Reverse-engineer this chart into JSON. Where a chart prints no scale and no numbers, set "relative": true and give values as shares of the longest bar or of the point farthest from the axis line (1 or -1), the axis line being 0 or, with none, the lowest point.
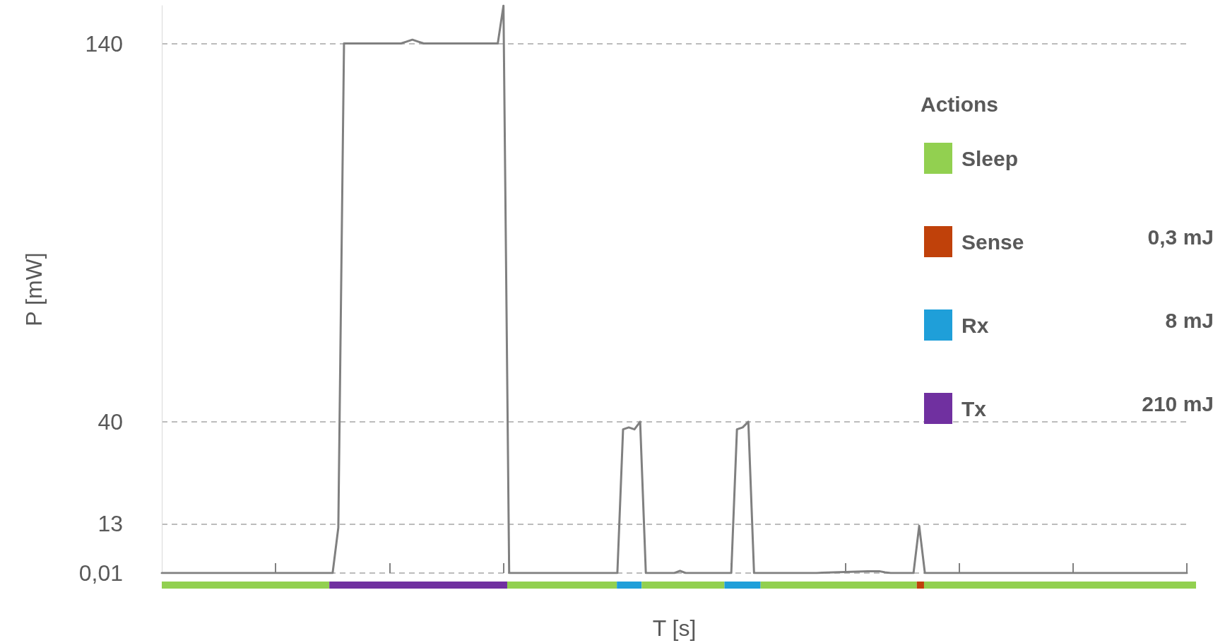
{
  "chart_data": [
    {
      "type": "line",
      "xlabel": "T [s]",
      "ylabel": "P [mW]",
      "categories": [
        null,
        null,
        null,
        null,
        null,
        null,
        null,
        null,
        null,
        null,
        null,
        null,
        null,
        null,
        null,
        null,
        null,
        null,
        null,
        null,
        null,
        null,
        null,
        null,
        null,
        null,
        null,
        null,
        null,
        null,
        null,
        null,
        null,
        null,
        null,
        null,
        null,
        null,
        null,
        null,
        null,
        null,
        null,
        null,
        null,
        null,
        null,
        null,
        null,
        null,
        null,
        null,
        null,
        null,
        null,
        null,
        null,
        null,
        null,
        null,
        null,
        null,
        null,
        null,
        null,
        null,
        null,
        null,
        null,
        null,
        null,
        null,
        null,
        null,
        null,
        null,
        null,
        null,
        null,
        null,
        null,
        null,
        null,
        null,
        null,
        null,
        null,
        null,
        null,
        null,
        null,
        null,
        null,
        null,
        null,
        null,
        null,
        null,
        null,
        null,
        null,
        null,
        null,
        null,
        null,
        null,
        null,
        null,
        null,
        null,
        null,
        null,
        null,
        null,
        null,
        null,
        null,
        null,
        null,
        null,
        null,
        null,
        null,
        null,
        null,
        null,
        null,
        null,
        null,
        null,
        null,
        null,
        null,
        null,
        null,
        null,
        null,
        null,
        null,
        null,
        null,
        null,
        null,
        null,
        null,
        null,
        null,
        null,
        null,
        null,
        null,
        null,
        null,
        null,
        null,
        null,
        null,
        null,
        null,
        null,
        null,
        null,
        null,
        null,
        null,
        null,
        null,
        null,
        null,
        null,
        null,
        null,
        null,
        null,
        null,
        null,
        null,
        null,
        null,
        null,
        null
      ],
      "ylim": [
        0.01,
        150
      ],
      "yticks": [
        {
          "value": 0.01,
          "label": "0,01"
        },
        13,
        40,
        140
      ],
      "grid": "y",
      "tick_labels": "y",
      "marker": "none",
      "line_style": "solid",
      "series": [
        {
          "color": "#808080",
          "values": [
            0.01,
            0.01,
            0.01,
            0.01,
            0.01,
            0.01,
            0.01,
            0.01,
            0.01,
            0.01,
            0.01,
            0.01,
            0.01,
            0.01,
            0.01,
            0.01,
            0.01,
            0.01,
            0.01,
            0.01,
            0.01,
            0.01,
            0.01,
            0.01,
            0.01,
            0.01,
            0.01,
            0.01,
            0.01,
            0.01,
            0.01,
            12,
            140,
            140,
            140,
            140,
            140,
            140,
            140,
            140,
            140,
            140,
            140,
            140.5,
            141,
            140.5,
            140,
            140,
            140,
            140,
            140,
            140,
            140,
            140,
            140,
            140,
            140,
            140,
            140,
            140,
            150,
            0.01,
            0.01,
            0.01,
            0.01,
            0.01,
            0.01,
            0.01,
            0.01,
            0.01,
            0.01,
            0.01,
            0.01,
            0.01,
            0.01,
            0.01,
            0.01,
            0.01,
            0.01,
            0.01,
            0.01,
            38,
            38.5,
            38,
            40,
            0.01,
            0.01,
            0.01,
            0.01,
            0.01,
            0.01,
            0.6,
            0.01,
            0.01,
            0.01,
            0.01,
            0.01,
            0.01,
            0.01,
            0.01,
            0.01,
            38,
            38.5,
            40,
            0.01,
            0.01,
            0.01,
            0.01,
            0.01,
            0.01,
            0.01,
            0.01,
            0.01,
            0.01,
            0.01,
            0.01,
            0.1,
            0.15,
            0.2,
            0.25,
            0.3,
            0.35,
            0.4,
            0.45,
            0.5,
            0.5,
            0.5,
            0.2,
            0.01,
            0.01,
            0.01,
            0.01,
            0.01,
            12.5,
            0.01,
            0.01,
            0.01,
            0.01,
            0.01,
            0.01,
            0.01,
            0.01,
            0.01,
            0.01,
            0.01,
            0.01,
            0.01,
            0.01,
            0.01,
            0.01,
            0.01,
            0.01,
            0.01,
            0.01,
            0.01,
            0.01,
            0.01,
            0.01,
            0.01,
            0.01,
            0.01,
            0.01,
            0.01,
            0.01,
            0.01,
            0.01,
            0.01,
            0.01,
            0.01,
            0.01,
            0.01,
            0.01,
            0.01,
            0.01,
            0.01,
            0.01,
            0.01,
            0.01,
            0.01,
            0.01,
            0.01
          ]
        }
      ]
    },
    {
      "type": "bar",
      "orientation": "horizontal",
      "stacked": true,
      "relative": true,
      "categories": [
        null
      ],
      "tick_labels": false,
      "legend": "top right",
      "legend_title": "Actions",
      "series": [
        {
          "color": "#92d050",
          "values": [
            0.162
          ]
        },
        {
          "name": "Tx",
          "color": "#7030a0",
          "values": [
            0.172
          ]
        },
        {
          "color": "#92d050",
          "values": [
            0.106
          ]
        },
        {
          "name": "Rx",
          "color": "#1f9fd9",
          "values": [
            0.024
          ]
        },
        {
          "color": "#92d050",
          "values": [
            0.08
          ]
        },
        {
          "color": "#1f9fd9",
          "values": [
            0.035
          ]
        },
        {
          "color": "#92d050",
          "values": [
            0.151
          ]
        },
        {
          "name": "Sense",
          "color": "#c0410a",
          "values": [
            0.007
          ]
        },
        {
          "name": "Sleep",
          "color": "#92d050",
          "values": [
            0.263
          ]
        }
      ],
      "annotations": [
        "0,3 mJ",
        "8 mJ",
        "210 mJ"
      ]
    }
  ]
}
